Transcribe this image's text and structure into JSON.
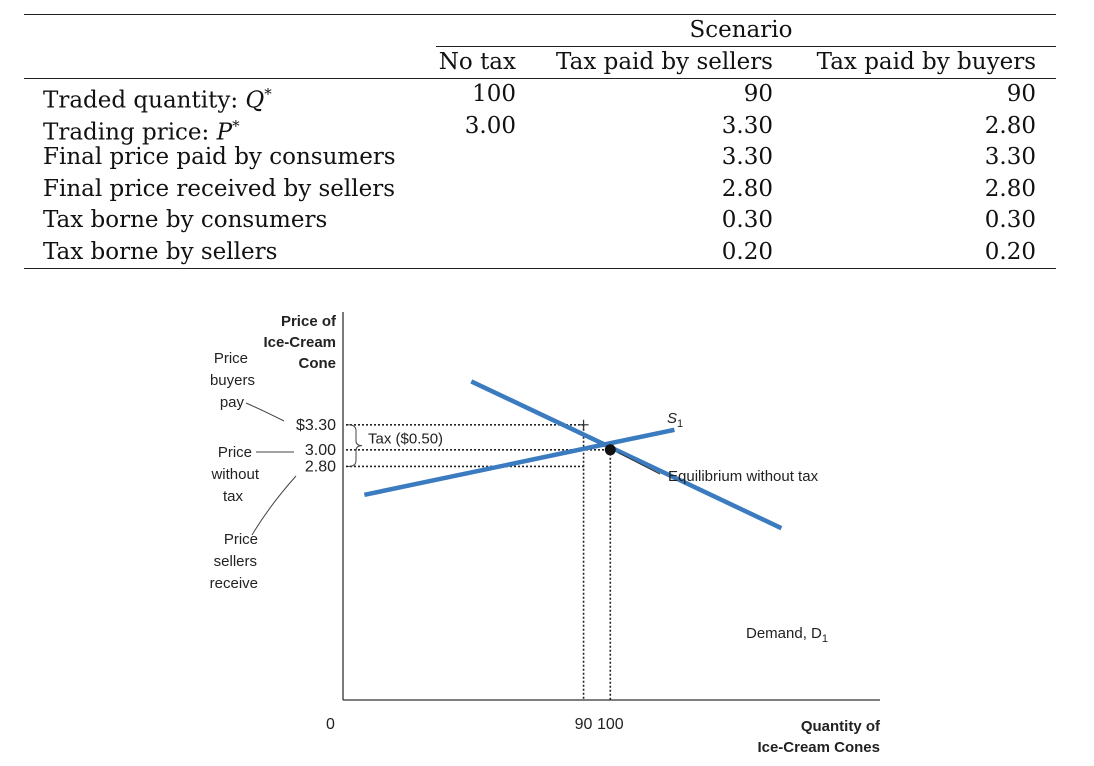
{
  "table": {
    "scenario_header": "Scenario",
    "columns": [
      "No tax",
      "Tax paid by sellers",
      "Tax paid by buyers"
    ],
    "rows": [
      {
        "label": "Traded quantity: ",
        "sym": "Q",
        "star": "*",
        "values": [
          "100",
          "90",
          "90"
        ]
      },
      {
        "label": "Trading price: ",
        "sym": "P",
        "star": "*",
        "values": [
          "3.00",
          "3.30",
          "2.80"
        ]
      },
      {
        "label": "Final price paid by consumers",
        "sym": "",
        "star": "",
        "values": [
          "",
          "3.30",
          "3.30"
        ]
      },
      {
        "label": "Final price received by sellers",
        "sym": "",
        "star": "",
        "values": [
          "",
          "2.80",
          "2.80"
        ]
      },
      {
        "label": "Tax borne by consumers",
        "sym": "",
        "star": "",
        "values": [
          "",
          "0.30",
          "0.30"
        ]
      },
      {
        "label": "Tax borne by sellers",
        "sym": "",
        "star": "",
        "values": [
          "",
          "0.20",
          "0.20"
        ]
      }
    ]
  },
  "chart_data": {
    "type": "line",
    "ylabel_lines": [
      "Price of",
      "Ice-Cream",
      "Cone"
    ],
    "xlabel_lines": [
      "Quantity of",
      "Ice-Cream Cones"
    ],
    "origin_label": "0",
    "x_ticks": [
      {
        "value": 90,
        "label": "90"
      },
      {
        "value": 100,
        "label": "100"
      }
    ],
    "y_ticks": [
      {
        "value": 3.3,
        "label": "$3.30"
      },
      {
        "value": 3.0,
        "label": "3.00"
      },
      {
        "value": 2.8,
        "label": "2.80"
      }
    ],
    "series": [
      {
        "name": "Demand, D",
        "sub": "1",
        "color": "#3b7bbf",
        "points": [
          {
            "x": 48,
            "y": 3.82
          },
          {
            "x": 164,
            "y": 2.06
          }
        ]
      },
      {
        "name": "S",
        "sub": "1",
        "color": "#3b7bbf",
        "points": [
          {
            "x": 8,
            "y": 2.46
          },
          {
            "x": 124,
            "y": 3.24
          }
        ]
      }
    ],
    "equilibrium": {
      "x": 100,
      "y": 3.0,
      "label": "Equilibrium without tax"
    },
    "tax_bracket_label": "Tax ($0.50)",
    "side_labels": {
      "buyers_pay": [
        "Price",
        "buyers",
        "pay"
      ],
      "without_tax": [
        "Price",
        "without",
        "tax"
      ],
      "sellers_receive": [
        "Price",
        "sellers",
        "receive"
      ]
    },
    "line_color": "#3b7bbf"
  }
}
